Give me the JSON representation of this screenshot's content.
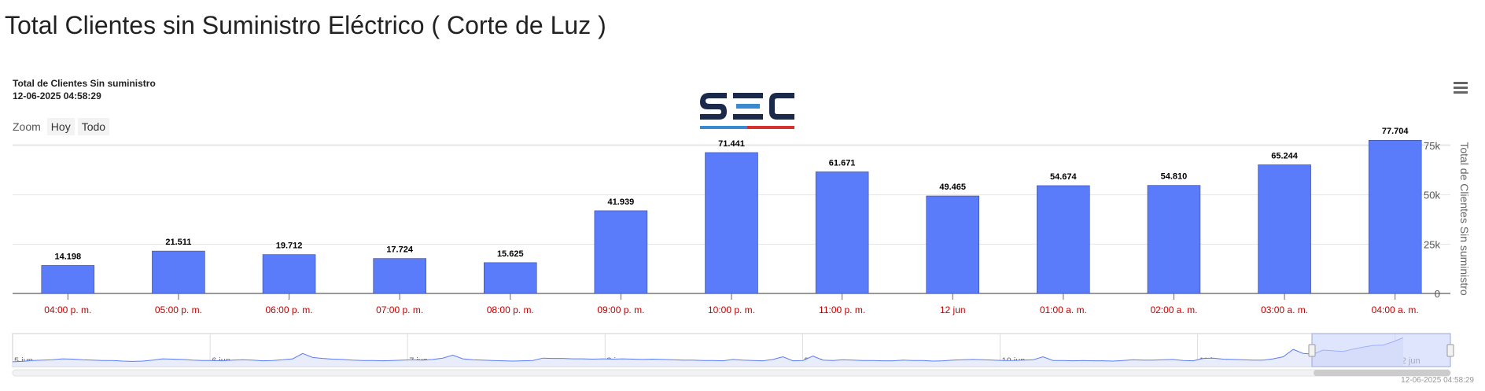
{
  "page": {
    "title": "Total Clientes sin Suministro Eléctrico ( Corte de Luz )"
  },
  "chart_header": {
    "subtitle_line1": "Total de Clientes Sin suministro",
    "subtitle_line2": "12-06-2025 04:58:29"
  },
  "zoom": {
    "label": "Zoom",
    "buttons": [
      "Hoy",
      "Todo"
    ]
  },
  "logo": {
    "text": "SEC",
    "icon": "sec-logo-icon"
  },
  "menu": {
    "icon": "hamburger-menu-icon"
  },
  "credits": "12-06-2025 04:58:29",
  "colors": {
    "bar": "#5b7cfa",
    "category_label": "#c00000",
    "navigator_fill": "#e8ecfb",
    "navigator_line": "#5b7cfa",
    "navigator_selection": "#c9d4fb"
  },
  "chart_data": {
    "type": "bar",
    "categories": [
      "04:00 p. m.",
      "05:00 p. m.",
      "06:00 p. m.",
      "07:00 p. m.",
      "08:00 p. m.",
      "09:00 p. m.",
      "10:00 p. m.",
      "11:00 p. m.",
      "12 jun",
      "01:00 a. m.",
      "02:00 a. m.",
      "03:00 a. m.",
      "04:00 a. m."
    ],
    "values": [
      14198,
      21511,
      19712,
      17724,
      15625,
      41939,
      71441,
      61671,
      49465,
      54674,
      54810,
      65244,
      77704
    ],
    "data_labels": [
      "14.198",
      "21.511",
      "19.712",
      "17.724",
      "15.625",
      "41.939",
      "71.441",
      "61.671",
      "49.465",
      "54.674",
      "54.810",
      "65.244",
      "77.704"
    ],
    "ylabel": "Total de Clientes Sin suministro",
    "y_ticks": [
      0,
      25000,
      50000,
      75000
    ],
    "y_tick_labels": [
      "0",
      "25k",
      "50k",
      "75k"
    ],
    "ylim": [
      0,
      100000
    ],
    "y_axis_side": "right",
    "grid": true,
    "navigator": {
      "labels": [
        "5 jun",
        "6 jun",
        "7 jun",
        "8 jun",
        "9 jun",
        "10 jun",
        "11 jun",
        "12 jun"
      ],
      "series": [
        5,
        6,
        9,
        10,
        11,
        14,
        13,
        11,
        10,
        9,
        9,
        7,
        6,
        7,
        10,
        14,
        13,
        12,
        10,
        9,
        9,
        8,
        10,
        11,
        10,
        8,
        9,
        11,
        14,
        30,
        18,
        15,
        13,
        12,
        10,
        9,
        9,
        8,
        9,
        10,
        11,
        10,
        12,
        16,
        25,
        14,
        11,
        10,
        9,
        8,
        7,
        8,
        9,
        16,
        15,
        15,
        14,
        14,
        13,
        14,
        13,
        14,
        13,
        12,
        13,
        12,
        11,
        10,
        10,
        9,
        9,
        8,
        12,
        10,
        9,
        8,
        12,
        20,
        8,
        9,
        22,
        10,
        9,
        11,
        10,
        9,
        9,
        8,
        8,
        10,
        9,
        9,
        7,
        8,
        10,
        11,
        12,
        11,
        10,
        9,
        9,
        10,
        11,
        20,
        9,
        9,
        8,
        9,
        8,
        8,
        7,
        9,
        11,
        10,
        10,
        11,
        12,
        9,
        8,
        15,
        16,
        13,
        12,
        11,
        10,
        10,
        14,
        20,
        42,
        30,
        28,
        40,
        38,
        36,
        43,
        49,
        54,
        55,
        65,
        77
      ],
      "selection": "last-day"
    }
  }
}
